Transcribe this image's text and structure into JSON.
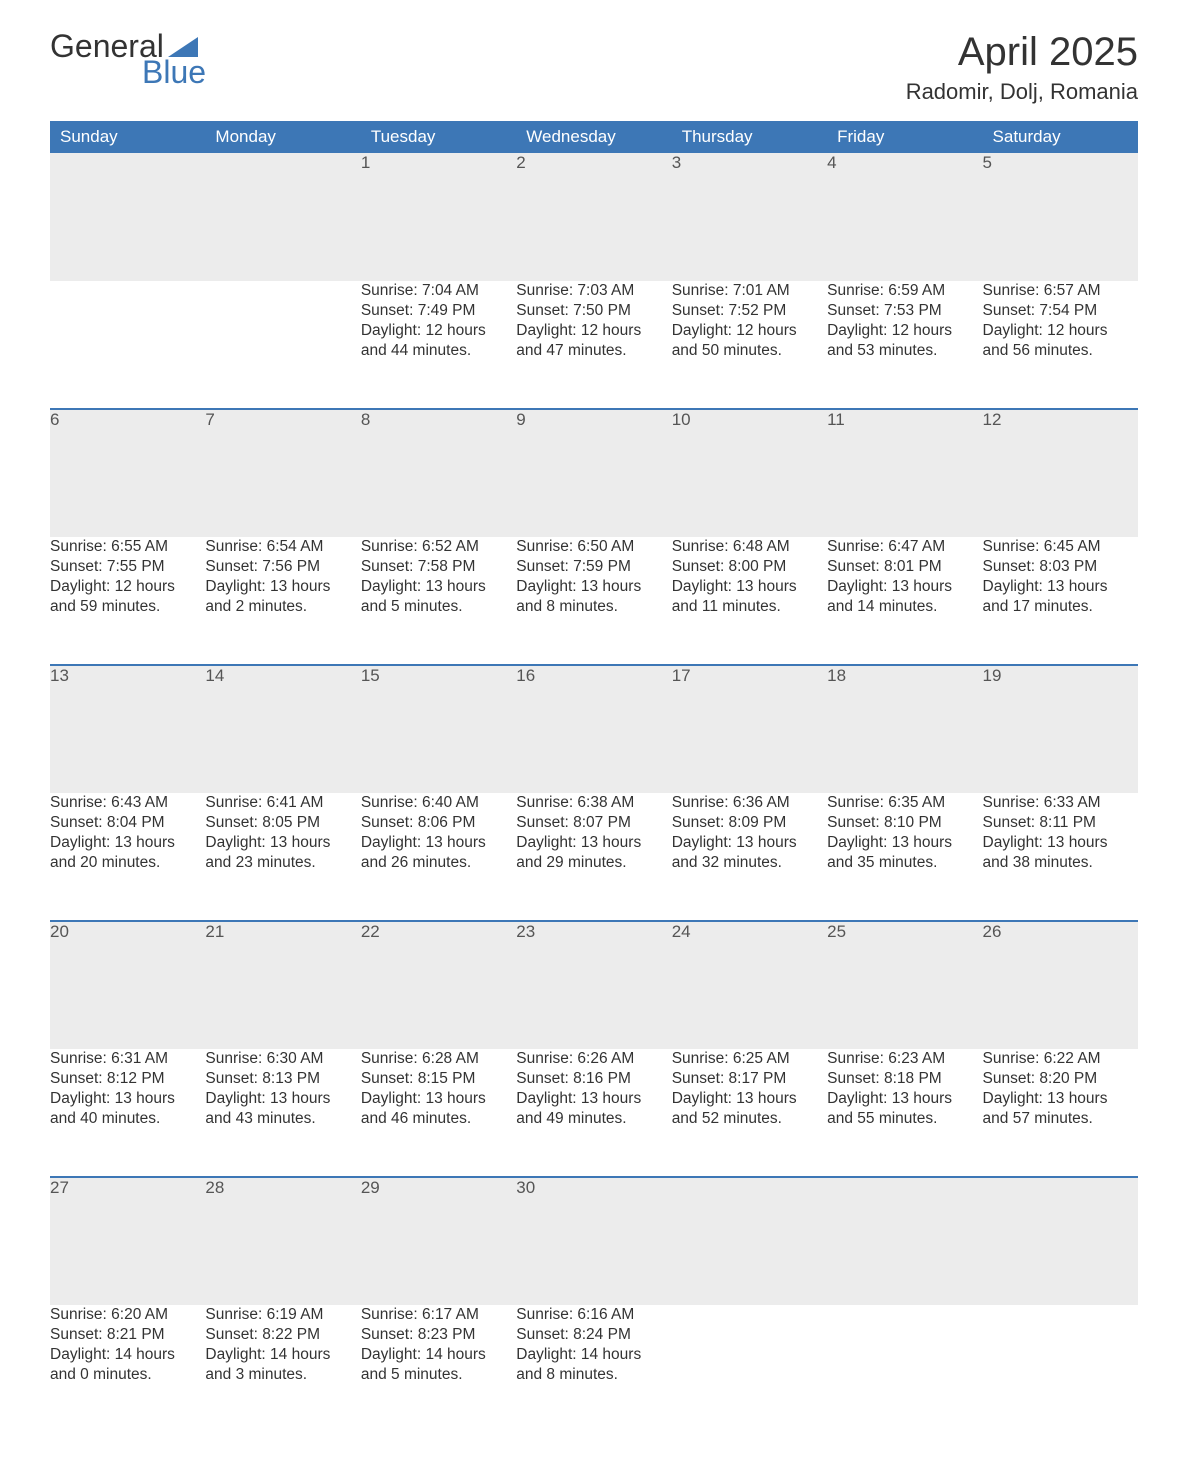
{
  "logo": {
    "word1": "General",
    "word2": "Blue",
    "triangle_color": "#3d77b6"
  },
  "header": {
    "month_title": "April 2025",
    "location": "Radomir, Dolj, Romania"
  },
  "weekday_labels": [
    "Sunday",
    "Monday",
    "Tuesday",
    "Wednesday",
    "Thursday",
    "Friday",
    "Saturday"
  ],
  "colors": {
    "header_bg": "#3d77b6",
    "header_text": "#ffffff",
    "daynum_bg": "#ececec",
    "row_border": "#3d77b6",
    "body_text": "#333333"
  },
  "weeks": [
    [
      null,
      null,
      {
        "n": "1",
        "sunrise": "Sunrise: 7:04 AM",
        "sunset": "Sunset: 7:49 PM",
        "day1": "Daylight: 12 hours",
        "day2": "and 44 minutes."
      },
      {
        "n": "2",
        "sunrise": "Sunrise: 7:03 AM",
        "sunset": "Sunset: 7:50 PM",
        "day1": "Daylight: 12 hours",
        "day2": "and 47 minutes."
      },
      {
        "n": "3",
        "sunrise": "Sunrise: 7:01 AM",
        "sunset": "Sunset: 7:52 PM",
        "day1": "Daylight: 12 hours",
        "day2": "and 50 minutes."
      },
      {
        "n": "4",
        "sunrise": "Sunrise: 6:59 AM",
        "sunset": "Sunset: 7:53 PM",
        "day1": "Daylight: 12 hours",
        "day2": "and 53 minutes."
      },
      {
        "n": "5",
        "sunrise": "Sunrise: 6:57 AM",
        "sunset": "Sunset: 7:54 PM",
        "day1": "Daylight: 12 hours",
        "day2": "and 56 minutes."
      }
    ],
    [
      {
        "n": "6",
        "sunrise": "Sunrise: 6:55 AM",
        "sunset": "Sunset: 7:55 PM",
        "day1": "Daylight: 12 hours",
        "day2": "and 59 minutes."
      },
      {
        "n": "7",
        "sunrise": "Sunrise: 6:54 AM",
        "sunset": "Sunset: 7:56 PM",
        "day1": "Daylight: 13 hours",
        "day2": "and 2 minutes."
      },
      {
        "n": "8",
        "sunrise": "Sunrise: 6:52 AM",
        "sunset": "Sunset: 7:58 PM",
        "day1": "Daylight: 13 hours",
        "day2": "and 5 minutes."
      },
      {
        "n": "9",
        "sunrise": "Sunrise: 6:50 AM",
        "sunset": "Sunset: 7:59 PM",
        "day1": "Daylight: 13 hours",
        "day2": "and 8 minutes."
      },
      {
        "n": "10",
        "sunrise": "Sunrise: 6:48 AM",
        "sunset": "Sunset: 8:00 PM",
        "day1": "Daylight: 13 hours",
        "day2": "and 11 minutes."
      },
      {
        "n": "11",
        "sunrise": "Sunrise: 6:47 AM",
        "sunset": "Sunset: 8:01 PM",
        "day1": "Daylight: 13 hours",
        "day2": "and 14 minutes."
      },
      {
        "n": "12",
        "sunrise": "Sunrise: 6:45 AM",
        "sunset": "Sunset: 8:03 PM",
        "day1": "Daylight: 13 hours",
        "day2": "and 17 minutes."
      }
    ],
    [
      {
        "n": "13",
        "sunrise": "Sunrise: 6:43 AM",
        "sunset": "Sunset: 8:04 PM",
        "day1": "Daylight: 13 hours",
        "day2": "and 20 minutes."
      },
      {
        "n": "14",
        "sunrise": "Sunrise: 6:41 AM",
        "sunset": "Sunset: 8:05 PM",
        "day1": "Daylight: 13 hours",
        "day2": "and 23 minutes."
      },
      {
        "n": "15",
        "sunrise": "Sunrise: 6:40 AM",
        "sunset": "Sunset: 8:06 PM",
        "day1": "Daylight: 13 hours",
        "day2": "and 26 minutes."
      },
      {
        "n": "16",
        "sunrise": "Sunrise: 6:38 AM",
        "sunset": "Sunset: 8:07 PM",
        "day1": "Daylight: 13 hours",
        "day2": "and 29 minutes."
      },
      {
        "n": "17",
        "sunrise": "Sunrise: 6:36 AM",
        "sunset": "Sunset: 8:09 PM",
        "day1": "Daylight: 13 hours",
        "day2": "and 32 minutes."
      },
      {
        "n": "18",
        "sunrise": "Sunrise: 6:35 AM",
        "sunset": "Sunset: 8:10 PM",
        "day1": "Daylight: 13 hours",
        "day2": "and 35 minutes."
      },
      {
        "n": "19",
        "sunrise": "Sunrise: 6:33 AM",
        "sunset": "Sunset: 8:11 PM",
        "day1": "Daylight: 13 hours",
        "day2": "and 38 minutes."
      }
    ],
    [
      {
        "n": "20",
        "sunrise": "Sunrise: 6:31 AM",
        "sunset": "Sunset: 8:12 PM",
        "day1": "Daylight: 13 hours",
        "day2": "and 40 minutes."
      },
      {
        "n": "21",
        "sunrise": "Sunrise: 6:30 AM",
        "sunset": "Sunset: 8:13 PM",
        "day1": "Daylight: 13 hours",
        "day2": "and 43 minutes."
      },
      {
        "n": "22",
        "sunrise": "Sunrise: 6:28 AM",
        "sunset": "Sunset: 8:15 PM",
        "day1": "Daylight: 13 hours",
        "day2": "and 46 minutes."
      },
      {
        "n": "23",
        "sunrise": "Sunrise: 6:26 AM",
        "sunset": "Sunset: 8:16 PM",
        "day1": "Daylight: 13 hours",
        "day2": "and 49 minutes."
      },
      {
        "n": "24",
        "sunrise": "Sunrise: 6:25 AM",
        "sunset": "Sunset: 8:17 PM",
        "day1": "Daylight: 13 hours",
        "day2": "and 52 minutes."
      },
      {
        "n": "25",
        "sunrise": "Sunrise: 6:23 AM",
        "sunset": "Sunset: 8:18 PM",
        "day1": "Daylight: 13 hours",
        "day2": "and 55 minutes."
      },
      {
        "n": "26",
        "sunrise": "Sunrise: 6:22 AM",
        "sunset": "Sunset: 8:20 PM",
        "day1": "Daylight: 13 hours",
        "day2": "and 57 minutes."
      }
    ],
    [
      {
        "n": "27",
        "sunrise": "Sunrise: 6:20 AM",
        "sunset": "Sunset: 8:21 PM",
        "day1": "Daylight: 14 hours",
        "day2": "and 0 minutes."
      },
      {
        "n": "28",
        "sunrise": "Sunrise: 6:19 AM",
        "sunset": "Sunset: 8:22 PM",
        "day1": "Daylight: 14 hours",
        "day2": "and 3 minutes."
      },
      {
        "n": "29",
        "sunrise": "Sunrise: 6:17 AM",
        "sunset": "Sunset: 8:23 PM",
        "day1": "Daylight: 14 hours",
        "day2": "and 5 minutes."
      },
      {
        "n": "30",
        "sunrise": "Sunrise: 6:16 AM",
        "sunset": "Sunset: 8:24 PM",
        "day1": "Daylight: 14 hours",
        "day2": "and 8 minutes."
      },
      null,
      null,
      null
    ]
  ]
}
